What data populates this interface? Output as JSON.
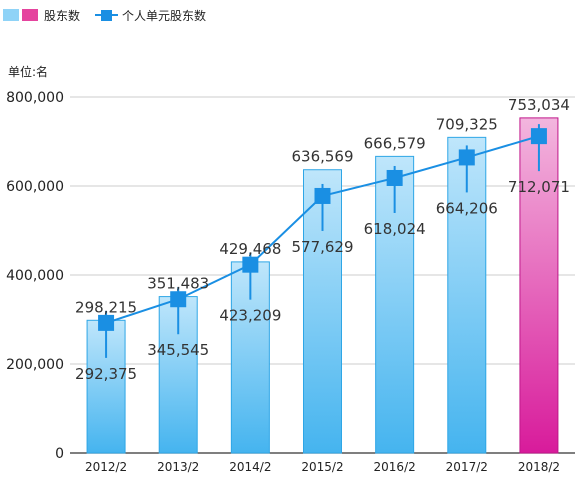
{
  "chart_data": {
    "type": "bar",
    "categories": [
      "2012/2",
      "2013/2",
      "2014/2",
      "2015/2",
      "2016/2",
      "2017/2",
      "2018/2"
    ],
    "series": [
      {
        "name": "股东数",
        "type": "bar",
        "values": [
          298215,
          351483,
          429468,
          636569,
          666579,
          709325,
          753034
        ],
        "value_labels": [
          "298,215",
          "351,483",
          "429,468",
          "636,569",
          "666,579",
          "709,325",
          "753,034"
        ],
        "color": "#4db8f0",
        "highlight_color": "#d81b9b"
      },
      {
        "name": "个人单元股东数",
        "type": "line",
        "values": [
          292375,
          345545,
          423209,
          577629,
          618024,
          664206,
          712071
        ],
        "value_labels": [
          "292,375",
          "345,545",
          "423,209",
          "577,629",
          "618,024",
          "664,206",
          "712,071"
        ],
        "color": "#1a8fe3"
      }
    ],
    "unit_label": "单位:名",
    "ylim": [
      0,
      800000
    ],
    "y_ticks": [
      0,
      200000,
      400000,
      600000,
      800000
    ],
    "y_tick_labels": [
      "0",
      "200,000",
      "400,000",
      "600,000",
      "800,000"
    ],
    "grid": true,
    "legend_position": "top-left"
  }
}
